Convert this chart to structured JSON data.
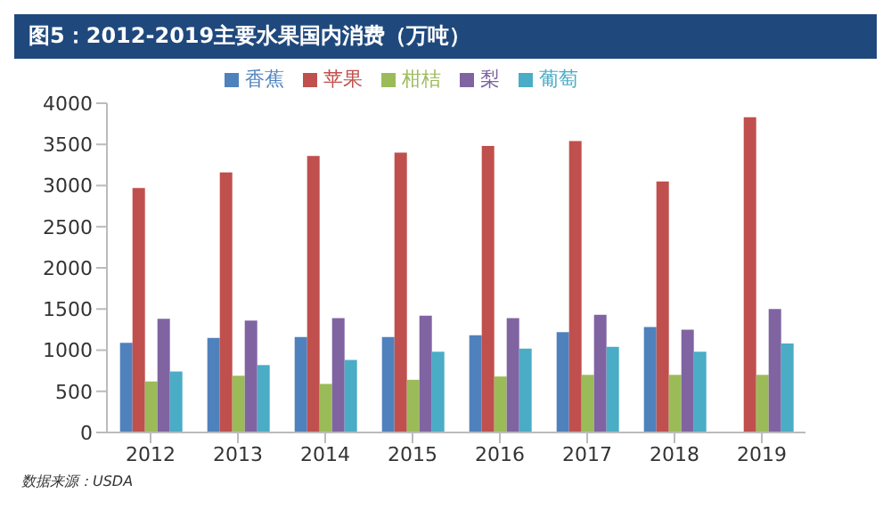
{
  "chart_data": {
    "type": "bar",
    "title": "图5：2012-2019主要水果国内消费（万吨）",
    "categories": [
      "2012",
      "2013",
      "2014",
      "2015",
      "2016",
      "2017",
      "2018",
      "2019"
    ],
    "series": [
      {
        "name": "香蕉",
        "color": "#4f81bd",
        "values": [
          1090,
          1150,
          1160,
          1160,
          1180,
          1220,
          1280,
          null
        ]
      },
      {
        "name": "苹果",
        "color": "#c0504d",
        "values": [
          2970,
          3160,
          3360,
          3400,
          3480,
          3540,
          3050,
          3830
        ]
      },
      {
        "name": "柑桔",
        "color": "#9bbb59",
        "values": [
          620,
          690,
          590,
          640,
          680,
          700,
          700,
          700
        ]
      },
      {
        "name": "梨",
        "color": "#8064a2",
        "values": [
          1380,
          1360,
          1390,
          1420,
          1390,
          1430,
          1250,
          1500
        ]
      },
      {
        "name": "葡萄",
        "color": "#4bacc6",
        "values": [
          740,
          820,
          880,
          980,
          1020,
          1040,
          980,
          1080
        ]
      }
    ],
    "ylim": [
      0,
      4000
    ],
    "yticks": [
      0,
      500,
      1000,
      1500,
      2000,
      2500,
      3000,
      3500,
      4000
    ],
    "grid": false,
    "legend": "top",
    "annotations": [
      "数据来源：USDA"
    ]
  }
}
